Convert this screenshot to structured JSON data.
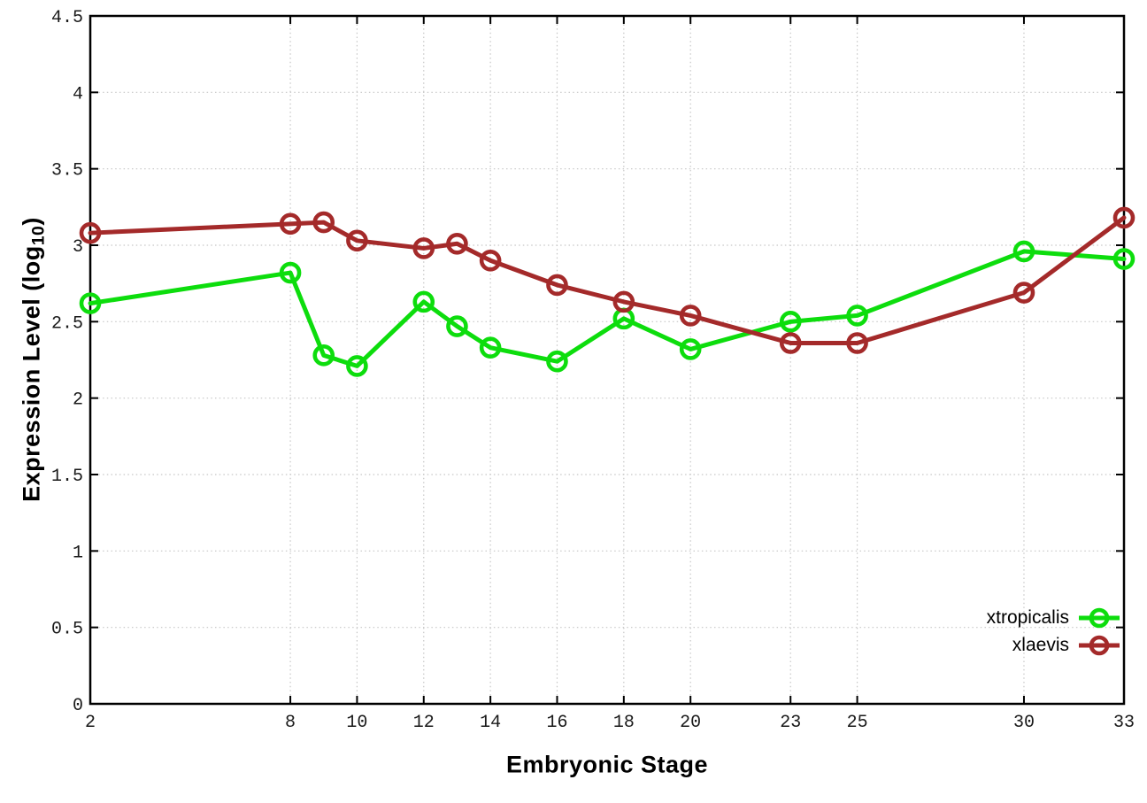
{
  "chart_data": {
    "type": "line",
    "title": "",
    "xlabel": "Embryonic Stage",
    "ylabel": {
      "text": "Expression Level (log",
      "sub": "10",
      "after": ")"
    },
    "x": [
      2,
      8,
      9,
      10,
      12,
      13,
      14,
      16,
      18,
      20,
      23,
      25,
      30,
      33
    ],
    "series": [
      {
        "name": "xtropicalis",
        "color": "#0ddd0d",
        "values": [
          2.62,
          2.82,
          2.28,
          2.21,
          2.63,
          2.47,
          2.33,
          2.24,
          2.52,
          2.32,
          2.5,
          2.54,
          2.96,
          2.91
        ]
      },
      {
        "name": "xlaevis",
        "color": "#a42a2a",
        "values": [
          3.08,
          3.14,
          3.15,
          3.03,
          2.98,
          3.01,
          2.9,
          2.74,
          2.63,
          2.54,
          2.36,
          2.36,
          2.69,
          3.18
        ]
      }
    ],
    "xlim": [
      2,
      33
    ],
    "ylim": [
      0,
      4.5
    ],
    "x_ticks": [
      2,
      8,
      10,
      12,
      14,
      16,
      18,
      20,
      23,
      25,
      30,
      33
    ],
    "x_tick_labels": [
      "2",
      "8",
      "10",
      "12",
      "14",
      "16",
      "18",
      "20",
      "23",
      "25",
      "30",
      "33"
    ],
    "y_ticks": [
      0,
      0.5,
      1,
      1.5,
      2,
      2.5,
      3,
      3.5,
      4,
      4.5
    ],
    "y_tick_labels": [
      "0",
      "0.5",
      "1",
      "1.5",
      "2",
      "2.5",
      "3",
      "3.5",
      "4",
      "4.5"
    ],
    "grid": true,
    "grid_style": "dotted",
    "marker": "open-circle",
    "legend_position": "bottom-right"
  },
  "colors": {
    "background": "#ffffff",
    "border": "#000000",
    "grid": "#c6c6c6",
    "text": "#000000",
    "series_green": "#0ddd0d",
    "series_red": "#a42a2a"
  }
}
